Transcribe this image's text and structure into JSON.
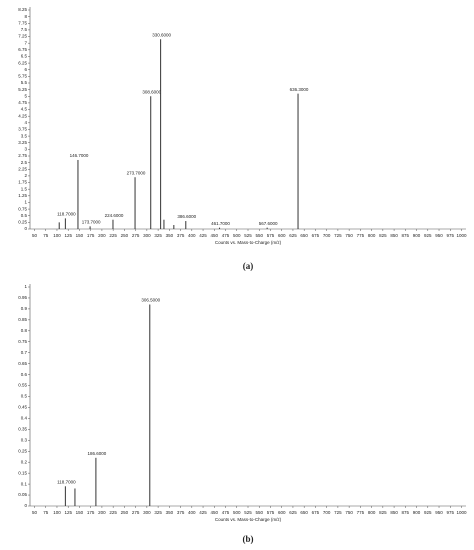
{
  "chart_data": [
    {
      "type": "stem",
      "caption": "(a)",
      "x_axis_label": "Counts vs. Mass-to-Charge (m/z)",
      "color": "#333333",
      "x": [
        105,
        118.7,
        146.7,
        173.7,
        224.6,
        273.7,
        308.6,
        330.6,
        338,
        360,
        386.6,
        461.7,
        567.6,
        636.3
      ],
      "x_labels": [
        null,
        "118.7000",
        "146.7000",
        "173.7000",
        "224.6000",
        "273.7000",
        "308.6000",
        "330.6000",
        null,
        null,
        "386.6000",
        "461.7000",
        "567.6000",
        "636.3000"
      ],
      "values": [
        0.25,
        0.4,
        2.6,
        0.1,
        0.35,
        1.95,
        5.0,
        7.15,
        0.35,
        0.15,
        0.3,
        0.05,
        0.05,
        5.1
      ],
      "xlim": [
        40,
        1010
      ],
      "ylim": [
        0,
        8.25
      ],
      "xticks": [
        50,
        75,
        100,
        125,
        150,
        175,
        200,
        225,
        250,
        275,
        300,
        325,
        350,
        375,
        400,
        425,
        450,
        475,
        500,
        525,
        550,
        575,
        600,
        625,
        650,
        675,
        700,
        725,
        750,
        775,
        800,
        825,
        850,
        875,
        900,
        925,
        950,
        975,
        1000
      ],
      "yticks": [
        0,
        0.25,
        0.5,
        0.75,
        1,
        1.25,
        1.5,
        1.75,
        2,
        2.25,
        2.5,
        2.75,
        3,
        3.25,
        3.5,
        3.75,
        4,
        4.25,
        4.5,
        4.75,
        5,
        5.25,
        5.5,
        5.75,
        6,
        6.25,
        6.5,
        6.75,
        7,
        7.25,
        7.5,
        7.75,
        8,
        8.25
      ]
    },
    {
      "type": "stem",
      "caption": "(b)",
      "x_axis_label": "Counts vs. Mass-to-Charge (m/z)",
      "color": "#333333",
      "x": [
        118.7,
        140,
        186.6,
        306.5
      ],
      "x_labels": [
        "118.7000",
        null,
        "186.6000",
        "306.5000"
      ],
      "values": [
        0.09,
        0.08,
        0.22,
        0.92
      ],
      "xlim": [
        40,
        1010
      ],
      "ylim": [
        0,
        1
      ],
      "xticks": [
        50,
        75,
        100,
        125,
        150,
        175,
        200,
        225,
        250,
        275,
        300,
        325,
        350,
        375,
        400,
        425,
        450,
        475,
        500,
        525,
        550,
        575,
        600,
        625,
        650,
        675,
        700,
        725,
        750,
        775,
        800,
        825,
        850,
        875,
        900,
        925,
        950,
        975,
        1000
      ],
      "yticks": [
        0,
        0.05,
        0.1,
        0.15,
        0.2,
        0.25,
        0.3,
        0.35,
        0.4,
        0.45,
        0.5,
        0.55,
        0.6,
        0.65,
        0.7,
        0.75,
        0.8,
        0.85,
        0.9,
        0.95,
        1
      ]
    }
  ]
}
